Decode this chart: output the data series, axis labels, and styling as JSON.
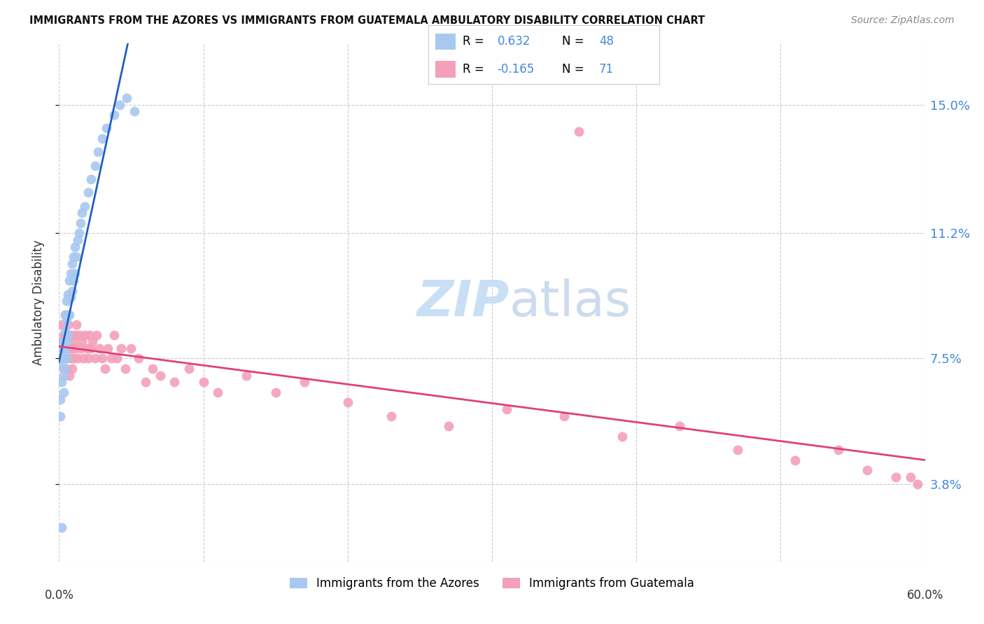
{
  "title": "IMMIGRANTS FROM THE AZORES VS IMMIGRANTS FROM GUATEMALA AMBULATORY DISABILITY CORRELATION CHART",
  "source": "Source: ZipAtlas.com",
  "ylabel": "Ambulatory Disability",
  "yticks": [
    0.038,
    0.075,
    0.112,
    0.15
  ],
  "ytick_labels": [
    "3.8%",
    "7.5%",
    "11.2%",
    "15.0%"
  ],
  "xlim": [
    0.0,
    0.6
  ],
  "ylim": [
    0.015,
    0.168
  ],
  "r_azores": 0.632,
  "n_azores": 48,
  "r_guatemala": -0.165,
  "n_guatemala": 71,
  "color_azores": "#a8c8f0",
  "color_guatemala": "#f4a0b8",
  "line_color_azores": "#2060c0",
  "line_color_guatemala": "#e0407a",
  "tick_color": "#4488dd",
  "watermark_color": "#c8dff5",
  "azores_x": [
    0.001,
    0.001,
    0.002,
    0.002,
    0.002,
    0.003,
    0.003,
    0.003,
    0.003,
    0.004,
    0.004,
    0.004,
    0.004,
    0.005,
    0.005,
    0.005,
    0.005,
    0.006,
    0.006,
    0.006,
    0.007,
    0.007,
    0.007,
    0.008,
    0.008,
    0.009,
    0.009,
    0.01,
    0.01,
    0.011,
    0.011,
    0.012,
    0.013,
    0.014,
    0.015,
    0.016,
    0.018,
    0.02,
    0.022,
    0.025,
    0.027,
    0.03,
    0.033,
    0.038,
    0.042,
    0.047,
    0.052,
    0.002
  ],
  "azores_y": [
    0.063,
    0.058,
    0.068,
    0.073,
    0.078,
    0.065,
    0.07,
    0.075,
    0.08,
    0.072,
    0.077,
    0.083,
    0.088,
    0.075,
    0.08,
    0.086,
    0.092,
    0.082,
    0.088,
    0.094,
    0.088,
    0.093,
    0.098,
    0.093,
    0.1,
    0.095,
    0.103,
    0.098,
    0.105,
    0.1,
    0.108,
    0.105,
    0.11,
    0.112,
    0.115,
    0.118,
    0.12,
    0.124,
    0.128,
    0.132,
    0.136,
    0.14,
    0.143,
    0.147,
    0.15,
    0.152,
    0.148,
    0.025
  ],
  "guatemala_x": [
    0.001,
    0.002,
    0.002,
    0.003,
    0.003,
    0.004,
    0.004,
    0.005,
    0.005,
    0.006,
    0.006,
    0.007,
    0.007,
    0.008,
    0.008,
    0.009,
    0.009,
    0.01,
    0.01,
    0.011,
    0.011,
    0.012,
    0.013,
    0.014,
    0.015,
    0.016,
    0.017,
    0.018,
    0.019,
    0.02,
    0.021,
    0.022,
    0.023,
    0.025,
    0.026,
    0.028,
    0.03,
    0.032,
    0.034,
    0.036,
    0.038,
    0.04,
    0.043,
    0.046,
    0.05,
    0.055,
    0.06,
    0.065,
    0.07,
    0.08,
    0.09,
    0.1,
    0.11,
    0.13,
    0.15,
    0.17,
    0.2,
    0.23,
    0.27,
    0.31,
    0.35,
    0.39,
    0.43,
    0.47,
    0.51,
    0.54,
    0.56,
    0.58,
    0.59,
    0.595,
    0.36
  ],
  "guatemala_y": [
    0.08,
    0.075,
    0.085,
    0.072,
    0.082,
    0.078,
    0.088,
    0.072,
    0.082,
    0.075,
    0.085,
    0.078,
    0.07,
    0.082,
    0.075,
    0.078,
    0.072,
    0.08,
    0.075,
    0.082,
    0.078,
    0.085,
    0.075,
    0.082,
    0.078,
    0.08,
    0.075,
    0.082,
    0.078,
    0.075,
    0.082,
    0.078,
    0.08,
    0.075,
    0.082,
    0.078,
    0.075,
    0.072,
    0.078,
    0.075,
    0.082,
    0.075,
    0.078,
    0.072,
    0.078,
    0.075,
    0.068,
    0.072,
    0.07,
    0.068,
    0.072,
    0.068,
    0.065,
    0.07,
    0.065,
    0.068,
    0.062,
    0.058,
    0.055,
    0.06,
    0.058,
    0.052,
    0.055,
    0.048,
    0.045,
    0.048,
    0.042,
    0.04,
    0.04,
    0.038,
    0.142
  ],
  "legend_items": [
    {
      "label": "R =",
      "value": "0.632",
      "n_label": "N =",
      "n_value": "48",
      "patch_color": "#a8c8f0"
    },
    {
      "label": "R =",
      "value": "-0.165",
      "n_label": "N =",
      "n_value": "71",
      "patch_color": "#f4a0b8"
    }
  ]
}
